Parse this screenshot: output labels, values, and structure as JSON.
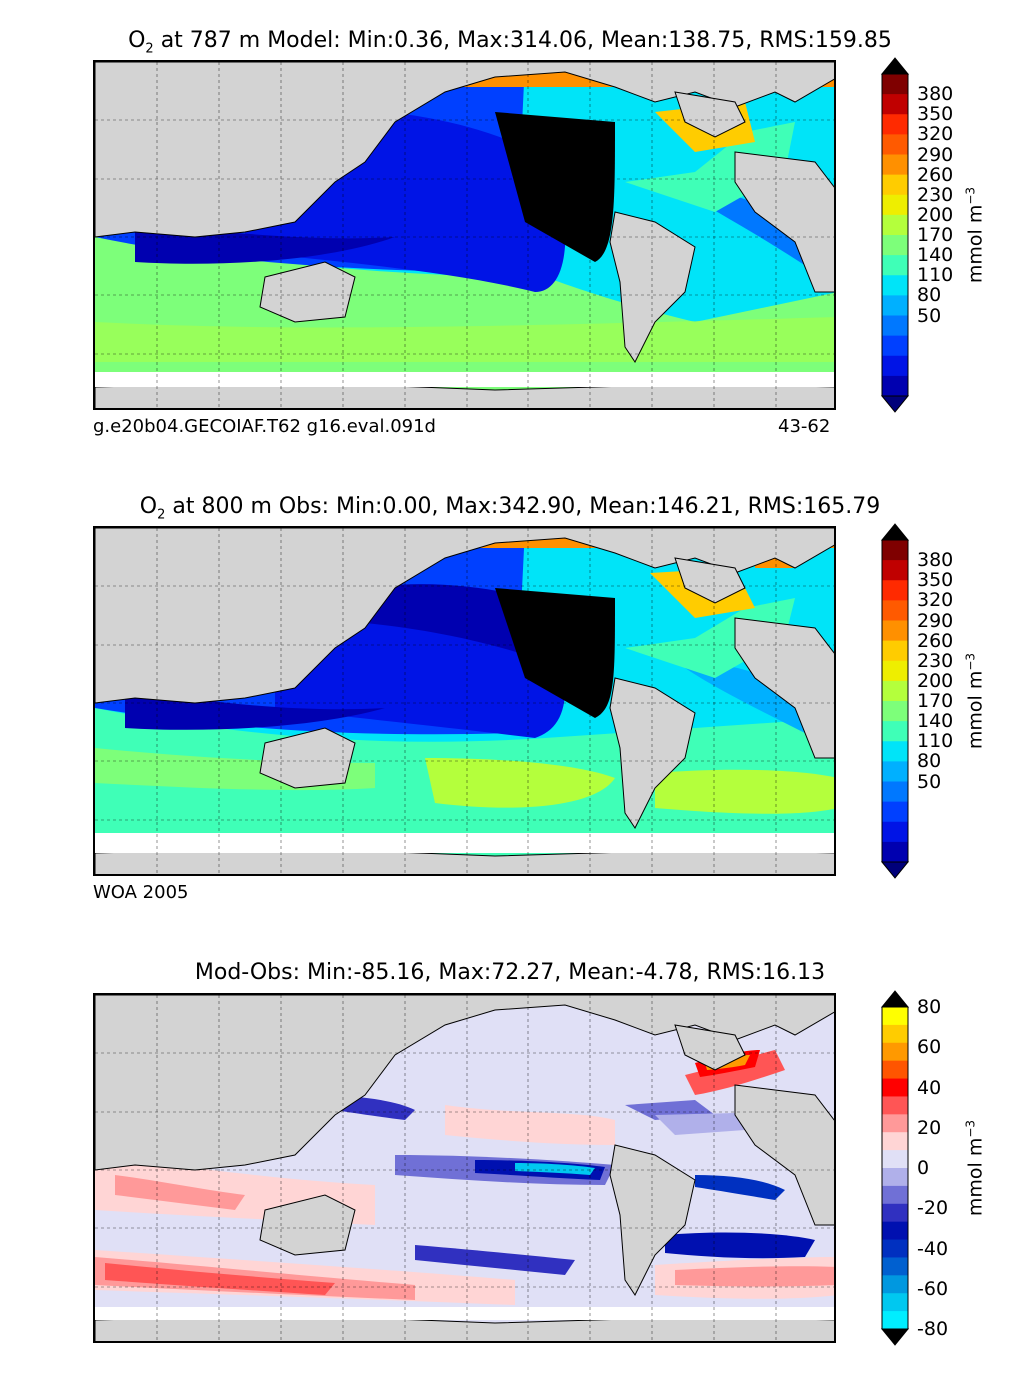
{
  "land_color": "#d3d3d3",
  "ice_color": "#ffffff",
  "panels": [
    {
      "id": "model",
      "title_prefix": "O",
      "title_sub": "2",
      "title_rest": "  at 787 m Model: Min:0.36, Max:314.06, Mean:138.75, RMS:159.85",
      "note_left": "g.e20b04.GECOIAF.T62 g16.eval.091d",
      "note_right": "43-62",
      "colorbar": {
        "ticks": [
          "380",
          "350",
          "320",
          "290",
          "260",
          "230",
          "200",
          "170",
          "140",
          "110",
          "80",
          "50"
        ],
        "unit_text": "mmol m",
        "unit_sup": "−3",
        "colors": [
          "#7f0000",
          "#c00000",
          "#ff2a00",
          "#ff5a00",
          "#ff9000",
          "#ffcc00",
          "#eeee00",
          "#b4ff3c",
          "#7dff7a",
          "#3fffb7",
          "#00e4f8",
          "#00b0ff",
          "#0078ff",
          "#0040ff",
          "#0014e6",
          "#0000b0"
        ],
        "low_arrow": "#00007a",
        "high_arrow": "#000000"
      }
    },
    {
      "id": "obs",
      "title_prefix": "O",
      "title_sub": "2",
      "title_rest": "  at 800 m Obs: Min:0.00, Max:342.90, Mean:146.21, RMS:165.79",
      "note_left": "WOA 2005",
      "note_right": "",
      "colorbar": {
        "ticks": [
          "380",
          "350",
          "320",
          "290",
          "260",
          "230",
          "200",
          "170",
          "140",
          "110",
          "80",
          "50"
        ],
        "unit_text": "mmol m",
        "unit_sup": "−3",
        "colors": [
          "#7f0000",
          "#c00000",
          "#ff2a00",
          "#ff5a00",
          "#ff9000",
          "#ffcc00",
          "#eeee00",
          "#b4ff3c",
          "#7dff7a",
          "#3fffb7",
          "#00e4f8",
          "#00b0ff",
          "#0078ff",
          "#0040ff",
          "#0014e6",
          "#0000b0"
        ],
        "low_arrow": "#00007a",
        "high_arrow": "#000000"
      }
    },
    {
      "id": "diff",
      "title_prefix": "",
      "title_sub": "",
      "title_rest": "Mod-Obs: Min:-85.16, Max:72.27, Mean:-4.78, RMS:16.13",
      "note_left": "",
      "note_right": "",
      "colorbar": {
        "ticks": [
          "80",
          "60",
          "40",
          "20",
          "0",
          "-20",
          "-40",
          "-60",
          "-80"
        ],
        "unit_text": "mmol m",
        "unit_sup": "−3",
        "colors": [
          "#ffff00",
          "#ffcc00",
          "#ff9900",
          "#ff5500",
          "#ff0000",
          "#ff5555",
          "#ff9999",
          "#ffd5d5",
          "#e0e0f6",
          "#b0b0ea",
          "#7070d6",
          "#3030c0",
          "#0010b0",
          "#0030c0",
          "#0060d0",
          "#0098e0",
          "#00c8f0",
          "#00eeff"
        ],
        "low_arrow": "#000000",
        "high_arrow": "#000000"
      }
    }
  ]
}
